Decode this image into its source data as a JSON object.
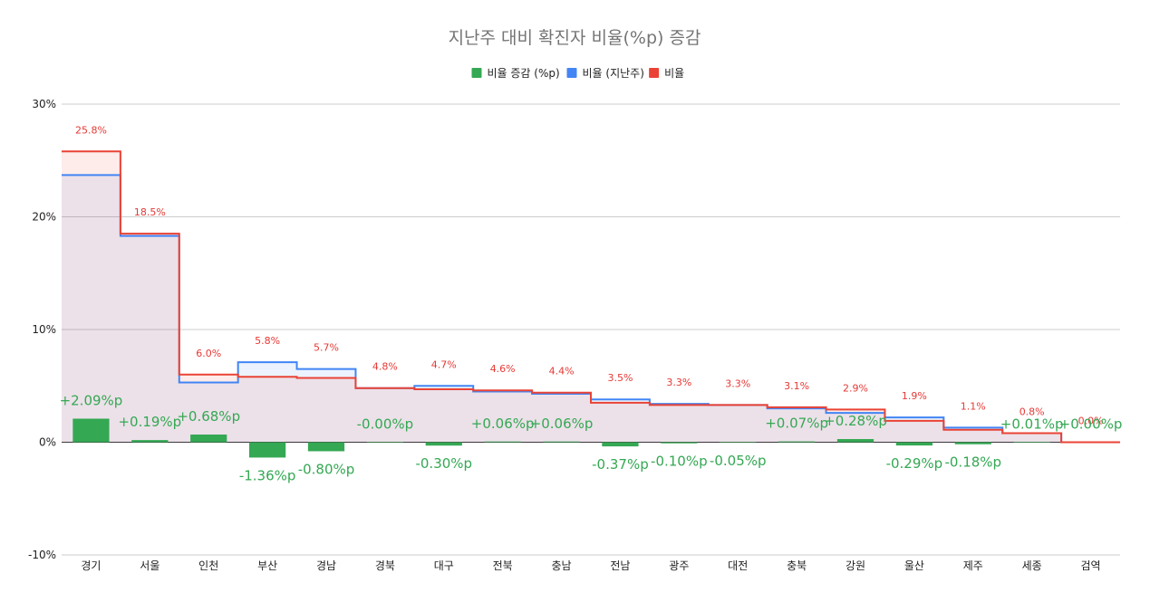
{
  "chart_data": {
    "type": "bar",
    "title": "지난주 대비 확진자 비율(%p) 증감",
    "xlabel": "",
    "ylabel": "",
    "ylim": [
      -10,
      30
    ],
    "yticks": [
      "-10%",
      "0%",
      "10%",
      "20%",
      "30%"
    ],
    "ytick_values": [
      -10,
      0,
      10,
      20,
      30
    ],
    "grid": true,
    "legend_position": "top",
    "categories": [
      "경기",
      "서울",
      "인천",
      "부산",
      "경남",
      "경북",
      "대구",
      "전북",
      "충남",
      "전남",
      "광주",
      "대전",
      "충북",
      "강원",
      "울산",
      "제주",
      "세종",
      "검역"
    ],
    "series": [
      {
        "name": "비율 증감 (%p)",
        "kind": "bar",
        "color": "#34a853",
        "values": [
          2.09,
          0.19,
          0.68,
          -1.36,
          -0.8,
          -0.0,
          -0.3,
          0.06,
          0.06,
          -0.37,
          -0.1,
          -0.05,
          0.07,
          0.28,
          -0.29,
          -0.18,
          0.01,
          0.0
        ],
        "labels": [
          "+2.09%p",
          "+0.19%p",
          "+0.68%p",
          "-1.36%p",
          "-0.80%p",
          "-0.00%p",
          "-0.30%p",
          "+0.06%p",
          "+0.06%p",
          "-0.37%p",
          "-0.10%p",
          "-0.05%p",
          "+0.07%p",
          "+0.28%p",
          "-0.29%p",
          "-0.18%p",
          "+0.01%p",
          "+0.00%p"
        ]
      },
      {
        "name": "비율 (지난주)",
        "kind": "stepped-area",
        "color": "#4285f4",
        "values": [
          23.7,
          18.3,
          5.3,
          7.1,
          6.5,
          4.8,
          5.0,
          4.5,
          4.3,
          3.8,
          3.4,
          3.3,
          3.0,
          2.6,
          2.2,
          1.3,
          0.8,
          0.0
        ]
      },
      {
        "name": "비율",
        "kind": "stepped-area",
        "color": "#ea4335",
        "values": [
          25.8,
          18.5,
          6.0,
          5.8,
          5.7,
          4.8,
          4.7,
          4.6,
          4.4,
          3.5,
          3.3,
          3.3,
          3.1,
          2.9,
          1.9,
          1.1,
          0.8,
          0.0
        ],
        "labels": [
          "25.8%",
          "18.5%",
          "6.0%",
          "5.8%",
          "5.7%",
          "4.8%",
          "4.7%",
          "4.6%",
          "4.4%",
          "3.5%",
          "3.3%",
          "3.3%",
          "3.1%",
          "2.9%",
          "1.9%",
          "1.1%",
          "0.8%",
          "0.0%"
        ]
      }
    ]
  }
}
